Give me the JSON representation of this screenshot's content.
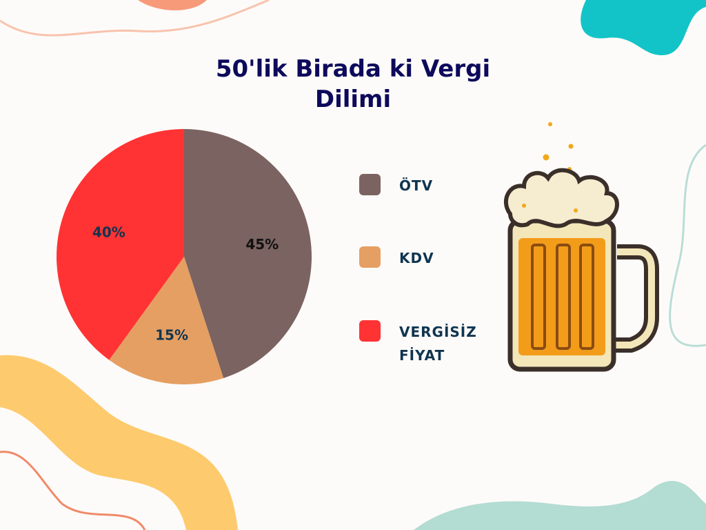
{
  "chart_data": {
    "type": "pie",
    "title": "50'lik Birada ki Vergi Dilimi",
    "categories": [
      "ÖTV",
      "KDV",
      "VERGİSİZ FİYAT"
    ],
    "values": [
      45,
      15,
      40
    ],
    "data_labels": [
      "45%",
      "15%",
      "40%"
    ],
    "colors": [
      "#7a6360",
      "#e59f62",
      "#ff3333"
    ],
    "label_colors": [
      "#111111",
      "#0f3550",
      "#0f3550"
    ],
    "legend_placement": "right"
  },
  "decoration": {
    "icon": "beer-mug-icon"
  }
}
